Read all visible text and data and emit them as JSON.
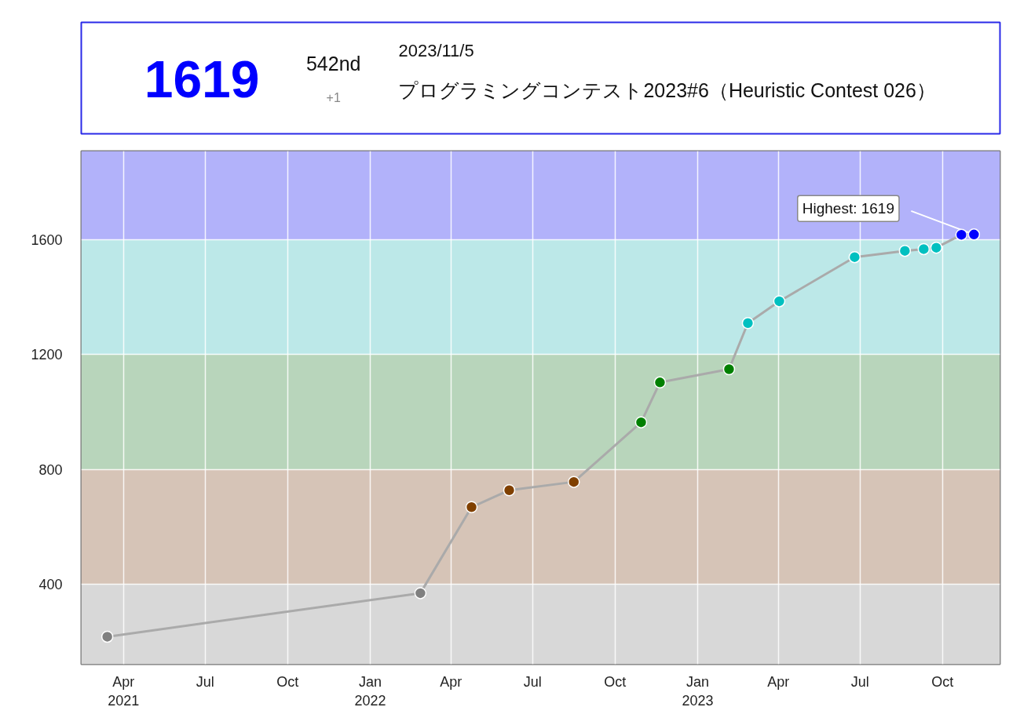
{
  "chart_data": {
    "type": "line",
    "annotations": [
      "1619",
      "542nd",
      "+1",
      "2023/11/5",
      "プログラミングコンテスト2023#6（Heuristic Contest 026）",
      {
        "text": "Highest: 1619",
        "x": "2023-11-05",
        "y": 1619
      }
    ],
    "x": [
      "2021-03-14",
      "2022-02-26",
      "2022-04-24",
      "2022-06-05",
      "2022-08-16",
      "2022-10-30",
      "2022-11-20",
      "2023-02-05",
      "2023-02-26",
      "2023-04-02",
      "2023-06-25",
      "2023-08-20",
      "2023-09-10",
      "2023-09-24",
      "2023-10-22",
      "2023-11-05"
    ],
    "values": [
      216,
      368,
      668,
      727,
      756,
      964,
      1103,
      1149,
      1310,
      1386,
      1540,
      1562,
      1568,
      1573,
      1618,
      1619
    ],
    "color": "#aaaaaa",
    "colors": [
      "#808080",
      "#808080",
      "#804000",
      "#804000",
      "#804000",
      "#008000",
      "#008000",
      "#008000",
      "#00c0c0",
      "#00c0c0",
      "#00c0c0",
      "#00c0c0",
      "#00c0c0",
      "#00c0c0",
      "#0000ff",
      "#0000ff"
    ],
    "marker": "circle",
    "line_style": "solid",
    "grid": true,
    "xlim": [
      "2021-02-13",
      "2023-12-04"
    ],
    "xticks": [
      {
        "value": "2021-04-01",
        "label": "Apr\n2021"
      },
      {
        "value": "2021-07-01",
        "label": "Jul"
      },
      {
        "value": "2021-10-01",
        "label": "Oct"
      },
      {
        "value": "2022-01-01",
        "label": "Jan\n2022"
      },
      {
        "value": "2022-04-01",
        "label": "Apr"
      },
      {
        "value": "2022-07-01",
        "label": "Jul"
      },
      {
        "value": "2022-10-01",
        "label": "Oct"
      },
      {
        "value": "2023-01-01",
        "label": "Jan\n2023"
      },
      {
        "value": "2023-04-01",
        "label": "Apr"
      },
      {
        "value": "2023-07-01",
        "label": "Jul"
      },
      {
        "value": "2023-10-01",
        "label": "Oct"
      }
    ],
    "ylim": [
      120,
      1910
    ],
    "yticks": [
      400,
      800,
      1200,
      1600
    ],
    "bands": [
      {
        "axis": "y",
        "from": 120,
        "to": 400,
        "color": "#d8d8d8"
      },
      {
        "axis": "y",
        "from": 400,
        "to": 800,
        "color": "#d6c4b7"
      },
      {
        "axis": "y",
        "from": 800,
        "to": 1200,
        "color": "#b8d5bb"
      },
      {
        "axis": "y",
        "from": 1200,
        "to": 1600,
        "color": "#bce8e8"
      },
      {
        "axis": "y",
        "from": 1600,
        "to": 1910,
        "color": "#b2b2fa"
      }
    ]
  }
}
